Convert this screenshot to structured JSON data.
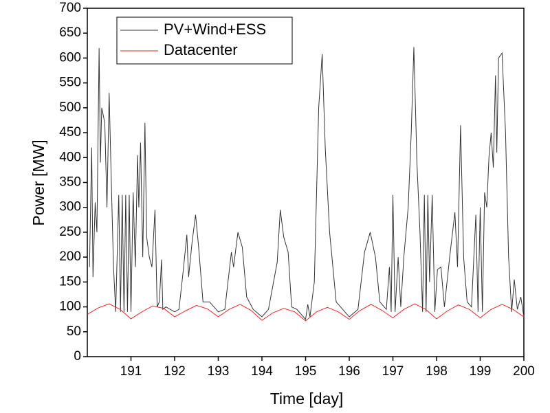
{
  "chart_data": {
    "type": "line",
    "x_label": "Time [day]",
    "y_label": "Power [MW]",
    "xlim": [
      190,
      200
    ],
    "xticks": [
      191,
      192,
      193,
      194,
      195,
      196,
      197,
      198,
      199,
      200
    ],
    "ylim": [
      0,
      700
    ],
    "yticks": [
      0,
      50,
      100,
      150,
      200,
      250,
      300,
      350,
      400,
      450,
      500,
      550,
      600,
      650,
      700
    ],
    "legend": "top-left",
    "series": [
      {
        "name": "PV+Wind+ESS",
        "color": "#333333",
        "x": [
          190.05,
          190.1,
          190.13,
          190.18,
          190.22,
          190.27,
          190.3,
          190.33,
          190.4,
          190.45,
          190.5,
          190.55,
          190.6,
          190.65,
          190.72,
          190.76,
          190.8,
          190.84,
          190.88,
          190.92,
          190.96,
          191.0,
          191.05,
          191.1,
          191.15,
          191.18,
          191.22,
          191.27,
          191.32,
          191.36,
          191.42,
          191.48,
          191.55,
          191.6,
          191.65,
          191.7,
          191.73,
          191.8,
          192.0,
          192.1,
          192.2,
          192.28,
          192.32,
          192.4,
          192.48,
          192.55,
          192.65,
          192.8,
          193.0,
          193.15,
          193.3,
          193.35,
          193.45,
          193.55,
          193.65,
          193.8,
          194.0,
          194.15,
          194.35,
          194.42,
          194.5,
          194.6,
          194.68,
          194.8,
          195.0,
          195.05,
          195.1,
          195.2,
          195.3,
          195.38,
          195.45,
          195.55,
          195.7,
          195.85,
          196.0,
          196.2,
          196.35,
          196.48,
          196.6,
          196.7,
          196.85,
          196.92,
          196.96,
          197.0,
          197.05,
          197.12,
          197.18,
          197.25,
          197.35,
          197.42,
          197.48,
          197.55,
          197.62,
          197.68,
          197.72,
          197.76,
          197.8,
          197.84,
          197.9,
          197.96,
          198.02,
          198.1,
          198.18,
          198.3,
          198.42,
          198.48,
          198.55,
          198.62,
          198.7,
          198.8,
          198.9,
          198.95,
          199.0,
          199.05,
          199.1,
          199.15,
          199.2,
          199.25,
          199.3,
          199.35,
          199.38,
          199.42,
          199.5,
          199.58,
          199.65,
          199.72,
          199.78,
          199.85,
          199.93,
          200.0
        ],
        "values": [
          180,
          420,
          160,
          310,
          250,
          620,
          390,
          500,
          470,
          300,
          530,
          350,
          180,
          90,
          325,
          90,
          325,
          90,
          325,
          90,
          325,
          90,
          330,
          180,
          405,
          300,
          430,
          200,
          470,
          240,
          200,
          180,
          295,
          100,
          110,
          195,
          95,
          100,
          90,
          95,
          175,
          245,
          160,
          230,
          285,
          220,
          110,
          110,
          90,
          95,
          210,
          180,
          250,
          220,
          120,
          95,
          80,
          95,
          190,
          295,
          240,
          210,
          100,
          95,
          75,
          105,
          80,
          150,
          500,
          608,
          420,
          250,
          110,
          95,
          80,
          95,
          210,
          250,
          200,
          110,
          95,
          180,
          90,
          325,
          90,
          200,
          100,
          200,
          300,
          450,
          622,
          390,
          250,
          90,
          325,
          90,
          325,
          150,
          325,
          90,
          175,
          180,
          100,
          200,
          290,
          180,
          465,
          200,
          110,
          100,
          285,
          90,
          300,
          90,
          330,
          300,
          400,
          450,
          380,
          565,
          410,
          600,
          610,
          450,
          200,
          90,
          155,
          95,
          120,
          80
        ]
      },
      {
        "name": "Datacenter",
        "color": "#e8262a",
        "x": [
          190.0,
          190.25,
          190.5,
          190.75,
          191.0,
          191.25,
          191.5,
          191.75,
          192.0,
          192.25,
          192.5,
          192.75,
          193.0,
          193.25,
          193.5,
          193.75,
          194.0,
          194.25,
          194.5,
          194.75,
          195.0,
          195.25,
          195.5,
          195.75,
          196.0,
          196.25,
          196.5,
          196.75,
          197.0,
          197.25,
          197.5,
          197.75,
          198.0,
          198.25,
          198.5,
          198.75,
          199.0,
          199.25,
          199.5,
          199.75,
          200.0
        ],
        "values": [
          85,
          98,
          106,
          95,
          76,
          90,
          102,
          97,
          80,
          92,
          103,
          96,
          80,
          95,
          105,
          93,
          73,
          88,
          97,
          90,
          72,
          90,
          99,
          90,
          75,
          93,
          105,
          93,
          78,
          95,
          106,
          95,
          76,
          92,
          104,
          95,
          78,
          95,
          105,
          95,
          80
        ]
      }
    ]
  }
}
